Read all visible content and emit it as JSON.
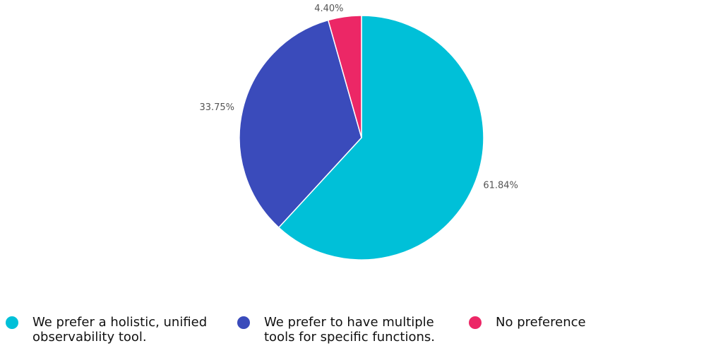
{
  "chart_data": {
    "type": "pie",
    "title": "",
    "slices": [
      {
        "label": "We prefer a holistic, unified\nobservability tool.",
        "value": 61.84,
        "value_label": "61.84%",
        "color": "#00c0d8"
      },
      {
        "label": "We prefer to have multiple\ntools for specific functions.",
        "value": 33.75,
        "value_label": "33.75%",
        "color": "#3a4bbb"
      },
      {
        "label": "No preference",
        "value": 4.4,
        "value_label": "4.40%",
        "color": "#ec2766"
      }
    ],
    "legend_position": "bottom"
  }
}
